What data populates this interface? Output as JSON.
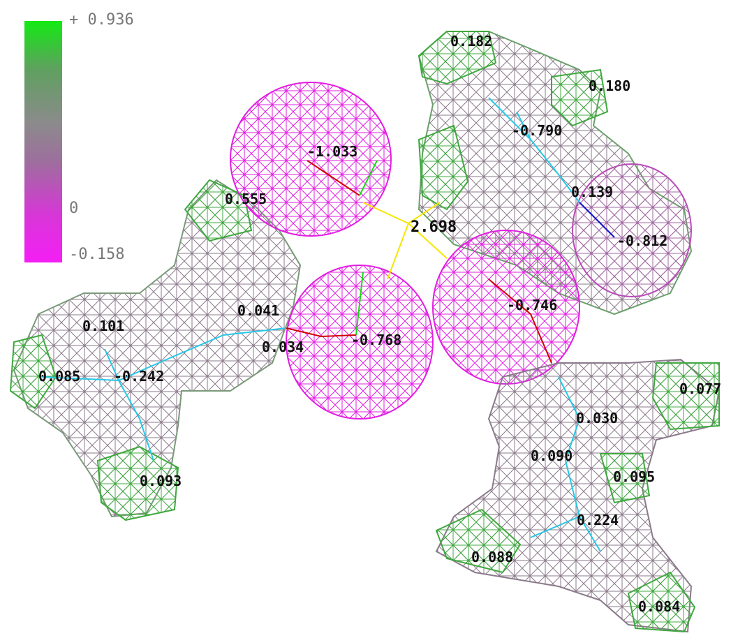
{
  "colorbar": {
    "max_label": "+ 0.936",
    "zero_label": "0",
    "min_label": "-0.158",
    "colors": {
      "positive": "#13ea13",
      "neutral": "#8b8b8b",
      "negative": "#f51ef5"
    }
  },
  "hbond": {
    "distance_label": "2.698",
    "color": "#f5e600"
  },
  "atom_charges": [
    {
      "label": "0.182"
    },
    {
      "label": "0.180"
    },
    {
      "label": "-1.033"
    },
    {
      "label": "-0.790"
    },
    {
      "label": "0.555"
    },
    {
      "label": "0.139"
    },
    {
      "label": "-0.812"
    },
    {
      "label": "0.041"
    },
    {
      "label": "-0.746"
    },
    {
      "label": "0.101"
    },
    {
      "label": "0.034"
    },
    {
      "label": "-0.768"
    },
    {
      "label": "0.085"
    },
    {
      "label": "-0.242"
    },
    {
      "label": "0.077"
    },
    {
      "label": "0.030"
    },
    {
      "label": "0.090"
    },
    {
      "label": "0.093"
    },
    {
      "label": "0.095"
    },
    {
      "label": "0.224"
    },
    {
      "label": "0.088"
    },
    {
      "label": "0.084"
    }
  ]
}
